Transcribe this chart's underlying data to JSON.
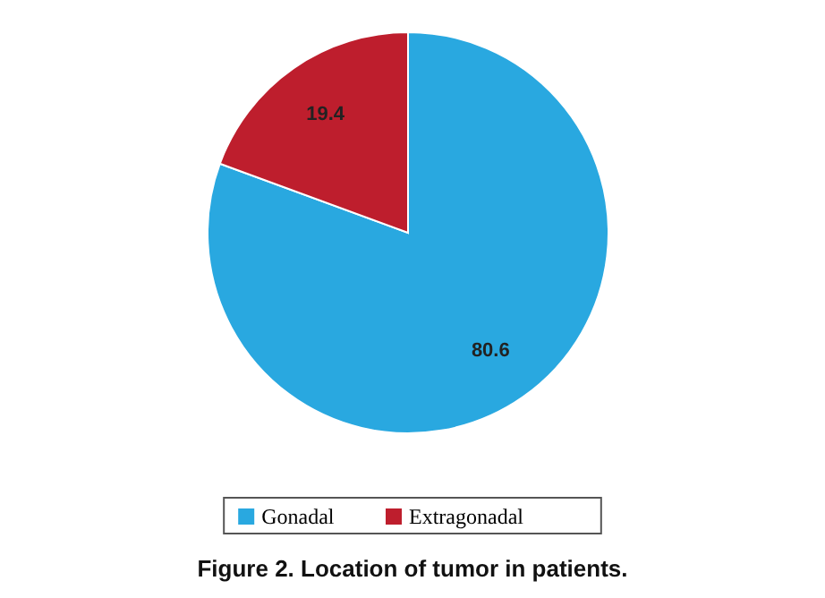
{
  "chart_data": {
    "type": "pie",
    "title": "Figure 2. Location of tumor in patients.",
    "categories": [
      "Gonadal",
      "Extragonadal"
    ],
    "values": [
      80.6,
      19.4
    ],
    "colors": [
      "#29a8e0",
      "#be1e2d"
    ],
    "data_labels": true,
    "legend": "bottom"
  }
}
